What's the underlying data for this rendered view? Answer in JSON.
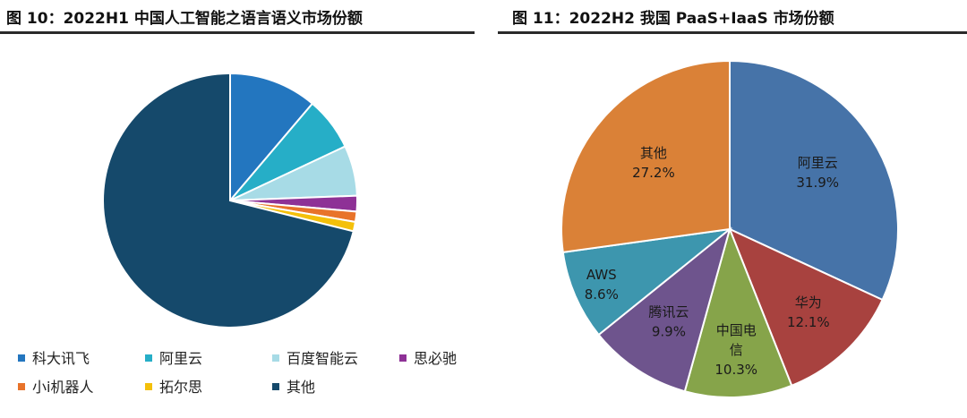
{
  "chart_data": [
    {
      "type": "pie",
      "title": "图 10：2022H1 中国人工智能之语言语义市场份额",
      "unit": "%",
      "slices": [
        {
          "label": "科大讯飞",
          "value": 11.2,
          "color": "#2376bf"
        },
        {
          "label": "阿里云",
          "value": 6.8,
          "color": "#26aec7"
        },
        {
          "label": "百度智能云",
          "value": 6.4,
          "color": "#a7dbe6"
        },
        {
          "label": "思必驰",
          "value": 2.0,
          "color": "#8e3196"
        },
        {
          "label": "小i机器人",
          "value": 1.3,
          "color": "#e8732a"
        },
        {
          "label": "拓尔思",
          "value": 1.2,
          "color": "#f4c00a"
        },
        {
          "label": "其他",
          "value": 71.1,
          "color": "#15496b"
        }
      ],
      "legend": "bottom"
    },
    {
      "type": "pie",
      "title": "图 11：2022H2 我国 PaaS+IaaS 市场份额",
      "unit": "%",
      "slices": [
        {
          "label": "阿里云",
          "value": 31.9,
          "value_text": "31.9%",
          "color": "#4673a8"
        },
        {
          "label": "华为",
          "value": 12.1,
          "value_text": "12.1%",
          "color": "#a8423f"
        },
        {
          "label": "中国电信",
          "value": 10.3,
          "value_text": "10.3%",
          "color": "#86a44a"
        },
        {
          "label": "腾讯云",
          "value": 9.9,
          "value_text": "9.9%",
          "color": "#6e548d"
        },
        {
          "label": "AWS",
          "value": 8.6,
          "value_text": "8.6%",
          "color": "#3d96ae"
        },
        {
          "label": "其他",
          "value": 27.2,
          "value_text": "27.2%",
          "color": "#da8137"
        }
      ],
      "legend": "none"
    }
  ]
}
